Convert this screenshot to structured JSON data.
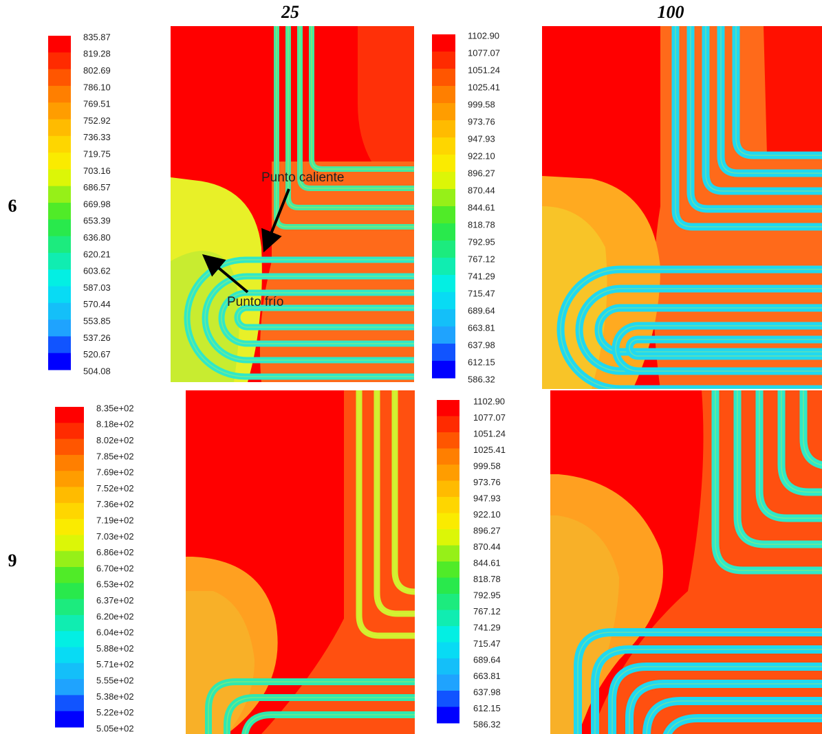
{
  "columns": [
    "25",
    "100"
  ],
  "rows": [
    "6",
    "9"
  ],
  "annotations": {
    "hot": "Punto caliente",
    "cold": "Punto frío"
  },
  "legends": [
    {
      "labels": [
        "835.87",
        "819.28",
        "802.69",
        "786.10",
        "769.51",
        "752.92",
        "736.33",
        "719.75",
        "703.16",
        "686.57",
        "669.98",
        "653.39",
        "636.80",
        "620.21",
        "603.62",
        "587.03",
        "570.44",
        "553.85",
        "537.26",
        "520.67",
        "504.08"
      ]
    },
    {
      "labels": [
        "1102.90",
        "1077.07",
        "1051.24",
        "1025.41",
        "999.58",
        "973.76",
        "947.93",
        "922.10",
        "896.27",
        "870.44",
        "844.61",
        "818.78",
        "792.95",
        "767.12",
        "741.29",
        "715.47",
        "689.64",
        "663.81",
        "637.98",
        "612.15",
        "586.32"
      ]
    },
    {
      "labels": [
        "8.35e+02",
        "8.18e+02",
        "8.02e+02",
        "7.85e+02",
        "7.69e+02",
        "7.52e+02",
        "7.36e+02",
        "7.19e+02",
        "7.03e+02",
        "6.86e+02",
        "6.70e+02",
        "6.53e+02",
        "6.37e+02",
        "6.20e+02",
        "6.04e+02",
        "5.88e+02",
        "5.71e+02",
        "5.55e+02",
        "5.38e+02",
        "5.22e+02",
        "5.05e+02"
      ]
    },
    {
      "labels": [
        "1102.90",
        "1077.07",
        "1051.24",
        "1025.41",
        "999.58",
        "973.76",
        "947.93",
        "922.10",
        "896.27",
        "870.44",
        "844.61",
        "818.78",
        "792.95",
        "767.12",
        "741.29",
        "715.47",
        "689.64",
        "663.81",
        "637.98",
        "612.15",
        "586.32"
      ]
    }
  ]
}
